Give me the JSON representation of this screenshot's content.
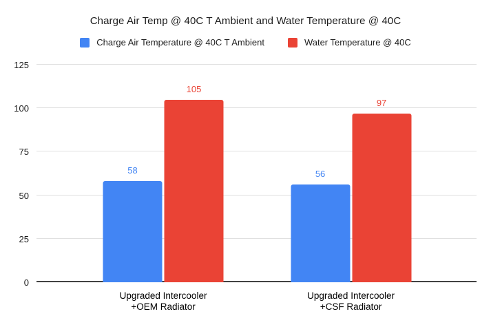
{
  "chart_data": {
    "type": "bar",
    "title": "Charge Air Temp @ 40C T Ambient and Water Temperature @ 40C",
    "categories": [
      "Upgraded Intercooler\n+OEM Radiator",
      "Upgraded Intercooler\n+CSF Radiator"
    ],
    "series": [
      {
        "name": "Charge Air Temperature @ 40C T Ambient",
        "color": "#4285F4",
        "values": [
          58,
          56
        ]
      },
      {
        "name": "Water Temperature @ 40C",
        "color": "#EA4335",
        "values": [
          105,
          97
        ]
      }
    ],
    "ylim": [
      0,
      125
    ],
    "yticks": [
      0,
      25,
      50,
      75,
      100,
      125
    ],
    "grid": true,
    "legend_position": "top",
    "data_labels": true,
    "colors": {
      "background": "#ffffff",
      "gridline": "#e0e0e0",
      "axis_line": "#424242",
      "text": "#1b1b1b"
    }
  }
}
